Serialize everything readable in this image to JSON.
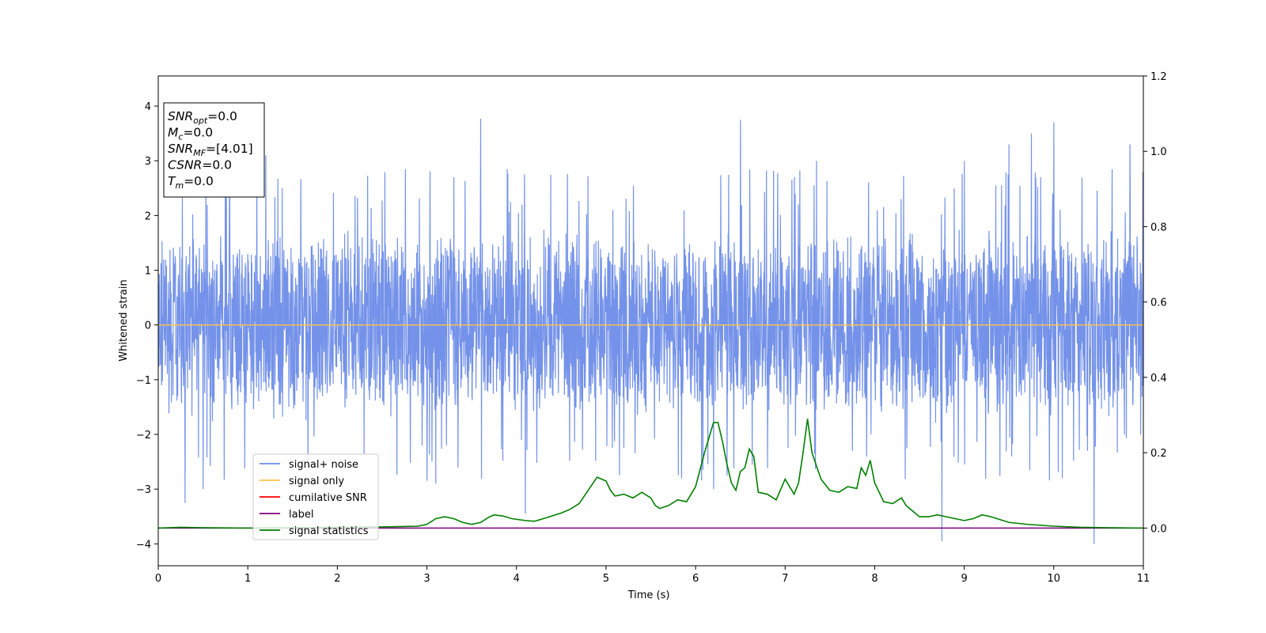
{
  "chart_data": {
    "type": "line",
    "xlabel": "Time (s)",
    "ylabel": "Whitened strain",
    "xlim": [
      0,
      11
    ],
    "ylim": [
      -4.4,
      4.55
    ],
    "y2lim": [
      -0.1,
      1.2
    ],
    "x_ticks": [
      0,
      1,
      2,
      3,
      4,
      5,
      6,
      7,
      8,
      9,
      10,
      11
    ],
    "y_ticks": [
      -4,
      -3,
      -2,
      -1,
      0,
      1,
      2,
      3,
      4
    ],
    "y_tick_labels": [
      "−4",
      "−3",
      "−2",
      "−1",
      "0",
      "1",
      "2",
      "3",
      "4"
    ],
    "y2_ticks": [
      0.0,
      0.2,
      0.4,
      0.6,
      0.8,
      1.0,
      1.2
    ],
    "y2_tick_labels": [
      "0.0",
      "0.2",
      "0.4",
      "0.6",
      "0.8",
      "1.0",
      "1.2"
    ],
    "grid": false,
    "legend_position": "lower-left",
    "legend": [
      {
        "label": "signal+ noise",
        "color": "#6d8ce8"
      },
      {
        "label": "signal only",
        "color": "#ffc34d"
      },
      {
        "label": "cumilative SNR",
        "color": "#ff0000"
      },
      {
        "label": "label",
        "color": "#800080"
      },
      {
        "label": "signal statistics",
        "color": "#008000"
      }
    ],
    "annotation": [
      {
        "name": "SNR",
        "sub": "opt",
        "value": "=0.0"
      },
      {
        "name": "M",
        "sub": "c",
        "value": "=0.0"
      },
      {
        "name": "SNR",
        "sub": "MF",
        "value": "=[4.01]"
      },
      {
        "name": "CSNR",
        "sub": "",
        "value": "=0.0"
      },
      {
        "name": "T",
        "sub": "m",
        "value": "=0.0"
      }
    ],
    "series": [
      {
        "name": "signal+ noise",
        "axis": "left",
        "color": "#6d8ce8",
        "noise_std": 0.9,
        "envelope": [
          -1.7,
          1.9
        ],
        "max": 3.77,
        "min": -4.0,
        "peaks": [
          [
            0.3,
            -3.25
          ],
          [
            0.5,
            -3.0
          ],
          [
            0.75,
            2.8
          ],
          [
            1.1,
            3.1
          ],
          [
            1.2,
            3.1
          ],
          [
            3.1,
            -2.9
          ],
          [
            3.3,
            2.7
          ],
          [
            3.6,
            3.77
          ],
          [
            4.1,
            -3.45
          ],
          [
            6.2,
            -3.0
          ],
          [
            6.5,
            3.75
          ],
          [
            7.35,
            3.0
          ],
          [
            8.75,
            -3.95
          ],
          [
            9.0,
            3.0
          ],
          [
            9.5,
            3.3
          ],
          [
            9.75,
            3.5
          ],
          [
            10.0,
            3.7
          ],
          [
            10.45,
            -4.0
          ],
          [
            10.85,
            3.3
          ]
        ]
      },
      {
        "name": "signal only",
        "axis": "left",
        "color": "#ffc34d",
        "x": [
          0,
          11
        ],
        "y": [
          0,
          0
        ]
      },
      {
        "name": "label",
        "axis": "right",
        "color": "#800080",
        "x": [
          0,
          11
        ],
        "y": [
          0,
          0
        ]
      },
      {
        "name": "signal statistics",
        "axis": "right",
        "color": "#008000",
        "x": [
          0,
          0.25,
          0.5,
          1.0,
          1.5,
          2.0,
          2.5,
          2.9,
          3.0,
          3.1,
          3.2,
          3.3,
          3.4,
          3.5,
          3.6,
          3.7,
          3.75,
          3.85,
          3.95,
          4.1,
          4.2,
          4.3,
          4.5,
          4.6,
          4.7,
          4.8,
          4.9,
          4.95,
          5.0,
          5.05,
          5.1,
          5.2,
          5.3,
          5.4,
          5.5,
          5.55,
          5.6,
          5.7,
          5.8,
          5.9,
          6.0,
          6.1,
          6.15,
          6.2,
          6.25,
          6.3,
          6.35,
          6.4,
          6.45,
          6.5,
          6.55,
          6.6,
          6.65,
          6.7,
          6.8,
          6.9,
          7.0,
          7.1,
          7.15,
          7.2,
          7.25,
          7.3,
          7.4,
          7.5,
          7.6,
          7.7,
          7.8,
          7.85,
          7.9,
          7.95,
          8.0,
          8.1,
          8.2,
          8.3,
          8.35,
          8.4,
          8.5,
          8.6,
          8.7,
          8.8,
          8.9,
          9.0,
          9.1,
          9.2,
          9.3,
          9.5,
          9.7,
          10.0,
          10.3,
          10.6,
          11.0
        ],
        "y": [
          0.0,
          0.002,
          0.001,
          0.0,
          0.001,
          0.002,
          0.003,
          0.005,
          0.01,
          0.025,
          0.03,
          0.025,
          0.015,
          0.01,
          0.015,
          0.03,
          0.035,
          0.032,
          0.025,
          0.02,
          0.018,
          0.025,
          0.04,
          0.05,
          0.065,
          0.1,
          0.135,
          0.13,
          0.125,
          0.1,
          0.085,
          0.09,
          0.08,
          0.095,
          0.08,
          0.06,
          0.052,
          0.06,
          0.075,
          0.07,
          0.11,
          0.2,
          0.24,
          0.28,
          0.28,
          0.23,
          0.17,
          0.12,
          0.1,
          0.15,
          0.16,
          0.21,
          0.19,
          0.095,
          0.09,
          0.075,
          0.13,
          0.09,
          0.12,
          0.2,
          0.29,
          0.2,
          0.13,
          0.1,
          0.095,
          0.11,
          0.105,
          0.16,
          0.14,
          0.18,
          0.12,
          0.07,
          0.065,
          0.08,
          0.06,
          0.05,
          0.03,
          0.03,
          0.035,
          0.03,
          0.025,
          0.02,
          0.025,
          0.035,
          0.03,
          0.015,
          0.01,
          0.005,
          0.002,
          0.001,
          0.0
        ]
      }
    ]
  }
}
